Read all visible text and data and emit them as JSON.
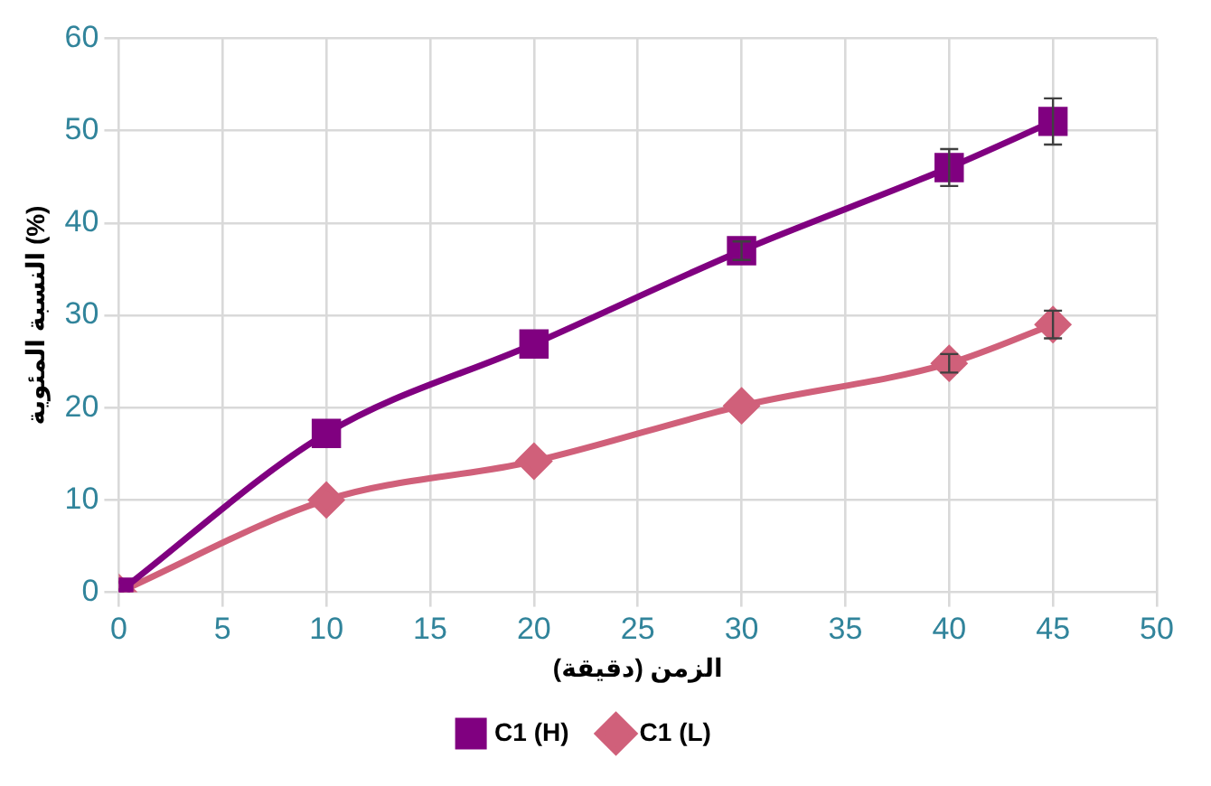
{
  "chart_data": {
    "type": "line",
    "xlabel": "الزمن (دقيقة)",
    "ylabel": "النسبة المئوية (%)",
    "x": [
      0,
      10,
      20,
      30,
      40,
      45
    ],
    "series": [
      {
        "name": "C1 (H)",
        "color": "#800080",
        "marker": "square",
        "values": [
          0,
          17.2,
          26.9,
          37,
          46,
          51
        ],
        "errors": [
          null,
          null,
          null,
          1,
          2,
          2.5
        ]
      },
      {
        "name": "C1 (L)",
        "color": "#d0607a",
        "marker": "diamond",
        "values": [
          0,
          10,
          14.2,
          20.2,
          24.8,
          29
        ],
        "errors": [
          null,
          null,
          null,
          null,
          1,
          1.5
        ]
      }
    ],
    "xlim": [
      0,
      50
    ],
    "xticks": [
      0,
      5,
      10,
      15,
      20,
      25,
      30,
      35,
      40,
      45,
      50
    ],
    "ylim": [
      0,
      60
    ],
    "yticks": [
      0,
      10,
      20,
      30,
      40,
      50,
      60
    ],
    "grid": true,
    "legend": "bottom"
  }
}
